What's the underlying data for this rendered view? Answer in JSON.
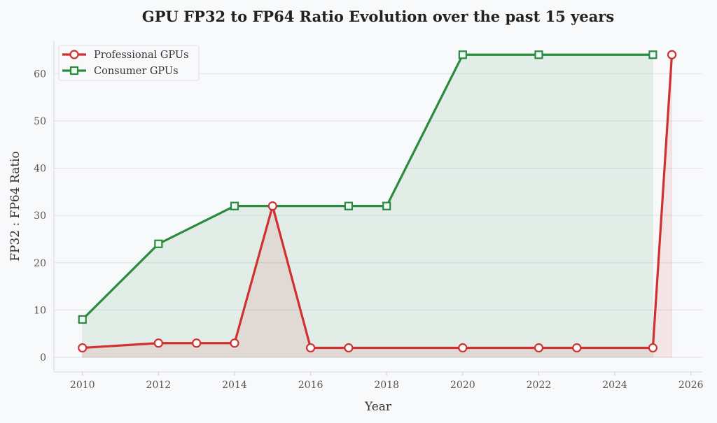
{
  "chart_data": {
    "type": "line",
    "title": "GPU FP32 to FP64 Ratio Evolution over the past 15 years",
    "xlabel": "Year",
    "ylabel": "FP32 : FP64 Ratio",
    "xlim": [
      2009.25,
      2026.3
    ],
    "ylim": [
      -3.1,
      67
    ],
    "xticks": [
      2010,
      2012,
      2014,
      2016,
      2018,
      2020,
      2022,
      2024,
      2026
    ],
    "yticks": [
      0,
      10,
      20,
      30,
      40,
      50,
      60
    ],
    "grid": "horizontal",
    "legend_placement": "top-left",
    "series": [
      {
        "name": "Professional GPUs",
        "color": "#d03030",
        "marker": "circle",
        "filled_area": true,
        "x": [
          2010,
          2012,
          2013,
          2014,
          2015,
          2016,
          2017,
          2020,
          2022,
          2023,
          2025,
          2025.5
        ],
        "y": [
          2,
          3,
          3,
          3,
          32,
          2,
          2,
          2,
          2,
          2,
          2,
          64
        ]
      },
      {
        "name": "Consumer GPUs",
        "color": "#2a8a3e",
        "marker": "square",
        "filled_area": true,
        "x": [
          2010,
          2012,
          2014,
          2017,
          2018,
          2020,
          2022,
          2025
        ],
        "y": [
          8,
          24,
          32,
          32,
          32,
          64,
          64,
          64
        ]
      }
    ]
  }
}
